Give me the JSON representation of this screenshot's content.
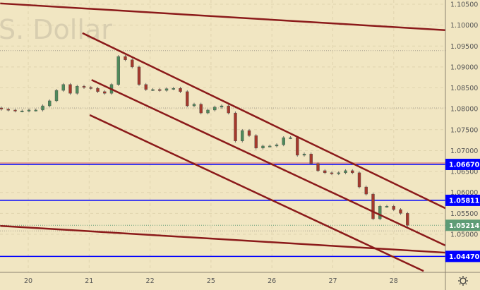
{
  "watermark": "S. Dollar",
  "chart_data": {
    "type": "candlestick",
    "title": "",
    "price_axis": {
      "ticks": [
        "1.10500",
        "1.10000",
        "1.09500",
        "1.09000",
        "1.08500",
        "1.08000",
        "1.07500",
        "1.07000",
        "1.06500",
        "1.06000",
        "1.05500",
        "1.05000"
      ],
      "range": [
        1.0425,
        1.1055
      ]
    },
    "date_axis": {
      "ticks": [
        "20",
        "21",
        "22",
        "25",
        "26",
        "27",
        "28"
      ]
    },
    "closes": [
      1.0799,
      1.0797,
      1.0795,
      1.0795,
      1.0797,
      1.0797,
      1.0807,
      1.0819,
      1.0844,
      1.0858,
      1.0837,
      1.0854,
      1.0851,
      1.0849,
      1.0841,
      1.0837,
      1.0858,
      1.0925,
      1.0917,
      1.09,
      1.0858,
      1.0846,
      1.0846,
      1.0844,
      1.0848,
      1.0849,
      1.0841,
      1.0807,
      1.0811,
      1.079,
      1.0797,
      1.0804,
      1.0807,
      1.079,
      1.0723,
      1.0748,
      1.0736,
      1.0706,
      1.0711,
      1.0711,
      1.0714,
      1.0731,
      1.0731,
      1.0689,
      1.0692,
      1.0669,
      1.0652,
      1.0647,
      1.0645,
      1.0647,
      1.0652,
      1.0647,
      1.0613,
      1.0596,
      1.0537,
      1.0567,
      1.0567,
      1.0559,
      1.055,
      1.05214
    ],
    "horizontal_levels": [
      {
        "price": 1.0667,
        "label": "1.06670",
        "color": "#0000ff"
      },
      {
        "price": 1.05811,
        "label": "1.05811",
        "color": "#0000ff"
      },
      {
        "price": 1.0447,
        "label": "1.04470",
        "color": "#0000ff"
      }
    ],
    "last_price": {
      "price": 1.05214,
      "label": "1.05214",
      "color": "#5e9c76"
    },
    "trend_lines": [
      {
        "from": {
          "day": -0.46,
          "price": 1.1052
        },
        "to": {
          "day": 6.85,
          "price": 1.0988
        }
      },
      {
        "from": {
          "day": 0.89,
          "price": 1.0981
        },
        "to": {
          "day": 6.85,
          "price": 1.0562
        }
      },
      {
        "from": {
          "day": 1.04,
          "price": 1.0869
        },
        "to": {
          "day": 6.85,
          "price": 1.0473
        }
      },
      {
        "from": {
          "day": 1.01,
          "price": 1.0785
        },
        "to": {
          "day": 6.49,
          "price": 1.0412
        }
      },
      {
        "from": {
          "day": -0.46,
          "price": 1.052
        },
        "to": {
          "day": 6.85,
          "price": 1.0456
        }
      }
    ],
    "colors": {
      "up": "#4f8a5b",
      "down": "#a5392c",
      "trend": "#8b1a1a",
      "background": "#f1e6c2"
    }
  },
  "icons": {
    "settings": "gear-icon"
  }
}
